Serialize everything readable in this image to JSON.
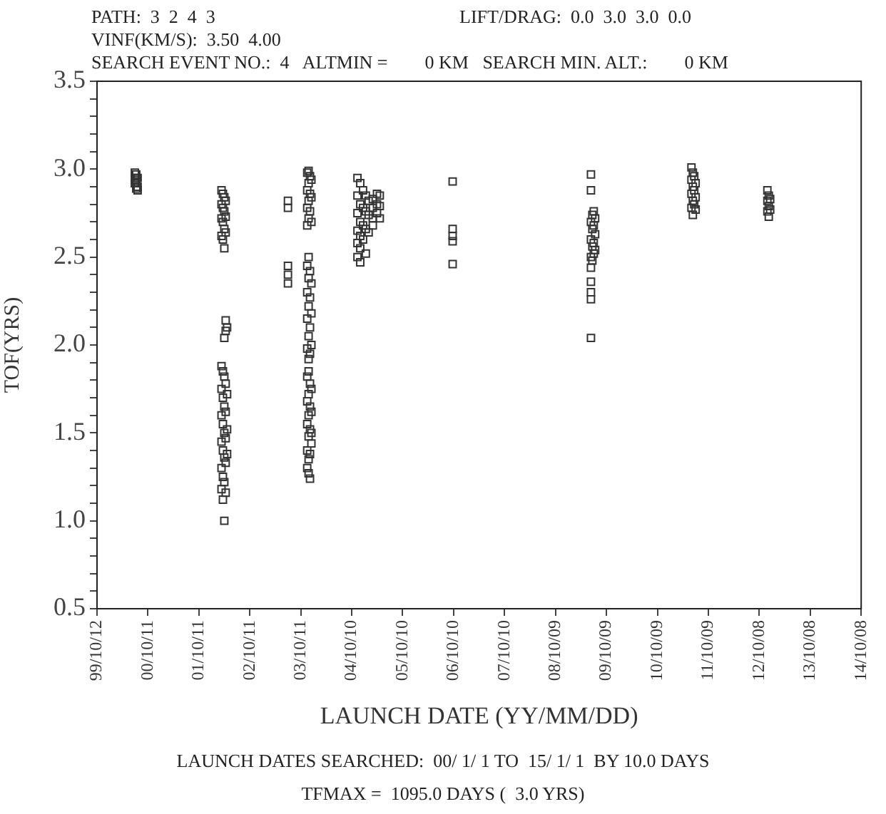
{
  "chart_data": {
    "type": "scatter",
    "xlabel": "LAUNCH DATE (YY/MM/DD)",
    "ylabel": "TOF(YRS)",
    "annotations": [
      "PATH:  3  2  4  3",
      "LIFT/DRAG:  0.0  3.0  3.0  0.0",
      "VINF(KM/S):  3.50  4.00",
      "SEARCH EVENT NO.:  4   ALTMIN =        0 KM   SEARCH MIN. ALT.:        0 KM",
      "LAUNCH DATES SEARCHED:  00/ 1/ 1 TO  15/ 1/ 1  BY 10.0 DAYS",
      "TFMAX =  1095.0 DAYS (  3.0 YRS)"
    ],
    "x": [
      "2000-07-09",
      "2000-07-09",
      "2000-07-09",
      "2000-07-19",
      "2000-07-19",
      "2000-07-19",
      "2000-07-29",
      "2000-07-29",
      "2000-07-29",
      "2002-03-22",
      "2002-03-22",
      "2002-03-22",
      "2002-03-22",
      "2002-03-22",
      "2002-03-22",
      "2002-03-22",
      "2002-03-22",
      "2002-03-22",
      "2002-03-22",
      "2002-04-01",
      "2002-04-01",
      "2002-04-01",
      "2002-04-01",
      "2002-04-01",
      "2002-04-01",
      "2002-04-01",
      "2002-04-01",
      "2002-04-01",
      "2002-04-01",
      "2002-04-11",
      "2002-04-11",
      "2002-04-11",
      "2002-04-11",
      "2002-04-11",
      "2002-04-11",
      "2002-04-11",
      "2002-04-11",
      "2002-04-11",
      "2002-04-11",
      "2002-04-11",
      "2002-04-21",
      "2002-04-21",
      "2002-04-21",
      "2002-04-21",
      "2002-04-21",
      "2002-04-21",
      "2002-04-21",
      "2002-04-21",
      "2002-04-21",
      "2002-04-21",
      "2002-05-01",
      "2002-05-01",
      "2002-05-01",
      "2002-05-01",
      "2003-07-11",
      "2003-07-11",
      "2003-07-11",
      "2003-07-11",
      "2003-07-11",
      "2003-11-26",
      "2003-11-26",
      "2003-11-26",
      "2003-11-26",
      "2003-11-26",
      "2003-11-26",
      "2003-11-26",
      "2003-11-26",
      "2003-11-26",
      "2003-11-26",
      "2003-11-26",
      "2003-11-26",
      "2003-11-26",
      "2003-12-06",
      "2003-12-06",
      "2003-12-06",
      "2003-12-06",
      "2003-12-06",
      "2003-12-06",
      "2003-12-06",
      "2003-12-06",
      "2003-12-06",
      "2003-12-06",
      "2003-12-06",
      "2003-12-06",
      "2003-12-06",
      "2003-12-06",
      "2003-12-06",
      "2003-12-16",
      "2003-12-16",
      "2003-12-16",
      "2003-12-16",
      "2003-12-16",
      "2003-12-16",
      "2003-12-16",
      "2003-12-16",
      "2003-12-16",
      "2003-12-16",
      "2003-12-16",
      "2003-12-16",
      "2003-12-26",
      "2003-12-26",
      "2003-12-26",
      "2003-12-26",
      "2003-12-26",
      "2003-12-26",
      "2003-12-26",
      "2003-12-26",
      "2003-12-26",
      "2003-12-26",
      "2004-11-20",
      "2004-11-20",
      "2004-11-20",
      "2004-11-20",
      "2004-11-20",
      "2004-11-20",
      "2004-12-10",
      "2004-12-10",
      "2004-12-10",
      "2004-12-10",
      "2004-12-10",
      "2004-12-10",
      "2004-12-30",
      "2004-12-30",
      "2004-12-30",
      "2004-12-30",
      "2005-01-19",
      "2005-01-19",
      "2005-01-19",
      "2005-01-19",
      "2005-02-08",
      "2005-02-08",
      "2005-02-08",
      "2005-03-10",
      "2005-03-10",
      "2005-03-10",
      "2005-03-10",
      "2005-04-09",
      "2005-04-09",
      "2005-04-09",
      "2005-04-29",
      "2005-04-29",
      "2005-04-29",
      "2006-10-03",
      "2006-10-03",
      "2006-10-03",
      "2006-10-03",
      "2006-10-03",
      "2009-06-20",
      "2009-06-20",
      "2009-06-20",
      "2009-06-20",
      "2009-06-20",
      "2009-06-20",
      "2009-06-20",
      "2009-06-20",
      "2009-06-20",
      "2009-06-20",
      "2009-06-30",
      "2009-06-30",
      "2009-06-30",
      "2009-06-30",
      "2009-07-10",
      "2009-07-10",
      "2009-07-10",
      "2009-07-10",
      "2009-07-20",
      "2009-07-20",
      "2009-07-20",
      "2011-06-10",
      "2011-06-10",
      "2011-06-10",
      "2011-06-10",
      "2011-06-20",
      "2011-06-20",
      "2011-06-20",
      "2011-06-20",
      "2011-06-30",
      "2011-06-30",
      "2011-06-30",
      "2011-07-10",
      "2011-07-10",
      "2011-07-10",
      "2012-12-05",
      "2012-12-05",
      "2012-12-05",
      "2012-12-15",
      "2012-12-15",
      "2012-12-15",
      "2012-12-25",
      "2012-12-25"
    ],
    "values": [
      2.98,
      2.95,
      2.92,
      2.97,
      2.93,
      2.89,
      2.95,
      2.9,
      2.88,
      2.88,
      2.8,
      2.72,
      2.62,
      1.88,
      1.75,
      1.6,
      1.45,
      1.3,
      1.18,
      2.86,
      2.78,
      2.7,
      2.6,
      1.85,
      1.7,
      1.55,
      1.4,
      1.25,
      1.12,
      2.84,
      2.76,
      2.66,
      2.55,
      2.04,
      1.82,
      1.65,
      1.5,
      1.36,
      1.22,
      1.0,
      2.82,
      2.73,
      2.64,
      2.14,
      2.08,
      1.78,
      1.62,
      1.47,
      1.33,
      1.16,
      2.1,
      1.72,
      1.52,
      1.38,
      2.82,
      2.78,
      2.45,
      2.4,
      2.35,
      2.98,
      2.88,
      2.78,
      2.68,
      2.45,
      2.3,
      2.15,
      1.98,
      1.82,
      1.68,
      1.55,
      1.4,
      1.3,
      2.99,
      2.92,
      2.82,
      2.72,
      2.5,
      2.38,
      2.22,
      2.05,
      1.92,
      1.85,
      1.72,
      1.6,
      1.48,
      1.35,
      1.27,
      2.96,
      2.86,
      2.76,
      2.42,
      2.27,
      2.1,
      1.95,
      1.78,
      1.65,
      1.52,
      1.38,
      1.24,
      2.94,
      2.84,
      2.7,
      2.35,
      2.18,
      2.0,
      1.75,
      1.62,
      1.5,
      1.44,
      2.95,
      2.85,
      2.75,
      2.65,
      2.58,
      2.5,
      2.92,
      2.8,
      2.7,
      2.62,
      2.55,
      2.47,
      2.88,
      2.78,
      2.68,
      2.6,
      2.85,
      2.76,
      2.66,
      2.52,
      2.82,
      2.74,
      2.64,
      2.83,
      2.78,
      2.72,
      2.68,
      2.86,
      2.8,
      2.75,
      2.85,
      2.79,
      2.72,
      2.93,
      2.66,
      2.62,
      2.59,
      2.46,
      2.97,
      2.88,
      2.7,
      2.6,
      2.5,
      2.44,
      2.36,
      2.3,
      2.26,
      2.04,
      2.74,
      2.66,
      2.56,
      2.48,
      2.76,
      2.68,
      2.58,
      2.52,
      2.72,
      2.63,
      2.54,
      3.01,
      2.94,
      2.86,
      2.78,
      2.98,
      2.9,
      2.82,
      2.74,
      2.96,
      2.88,
      2.8,
      2.92,
      2.84,
      2.77,
      2.88,
      2.82,
      2.76,
      2.85,
      2.79,
      2.73,
      2.83,
      2.77
    ],
    "color": "#333333",
    "marker": "square",
    "grid": false,
    "legend": false,
    "xlim": [
      "1999-10-12",
      "2014-10-08"
    ],
    "xticks": [
      {
        "value": "1999-10-12",
        "label": "99/10/12"
      },
      {
        "value": "2000-10-11",
        "label": "00/10/11"
      },
      {
        "value": "2001-10-11",
        "label": "01/10/11"
      },
      {
        "value": "2002-10-11",
        "label": "02/10/11"
      },
      {
        "value": "2003-10-11",
        "label": "03/10/11"
      },
      {
        "value": "2004-10-10",
        "label": "04/10/10"
      },
      {
        "value": "2005-10-10",
        "label": "05/10/10"
      },
      {
        "value": "2006-10-10",
        "label": "06/10/10"
      },
      {
        "value": "2007-10-10",
        "label": "07/10/10"
      },
      {
        "value": "2008-10-09",
        "label": "08/10/09"
      },
      {
        "value": "2009-10-09",
        "label": "09/10/09"
      },
      {
        "value": "2010-10-09",
        "label": "10/10/09"
      },
      {
        "value": "2011-10-09",
        "label": "11/10/09"
      },
      {
        "value": "2012-10-08",
        "label": "12/10/08"
      },
      {
        "value": "2013-10-08",
        "label": "13/10/08"
      },
      {
        "value": "2014-10-08",
        "label": "14/10/08"
      }
    ],
    "ylim": [
      0.5,
      3.5
    ],
    "yticks": [
      0.5,
      {
        "value": 0.6,
        "label": null
      },
      {
        "value": 0.7,
        "label": null
      },
      {
        "value": 0.8,
        "label": null
      },
      {
        "value": 0.9,
        "label": null
      },
      {
        "value": 1,
        "label": "1.0"
      },
      {
        "value": 1.1,
        "label": null
      },
      {
        "value": 1.2,
        "label": null
      },
      {
        "value": 1.3,
        "label": null
      },
      {
        "value": 1.4,
        "label": null
      },
      1.5,
      {
        "value": 1.6,
        "label": null
      },
      {
        "value": 1.7,
        "label": null
      },
      {
        "value": 1.8,
        "label": null
      },
      {
        "value": 1.9,
        "label": null
      },
      {
        "value": 2,
        "label": "2.0"
      },
      {
        "value": 2.1,
        "label": null
      },
      {
        "value": 2.2,
        "label": null
      },
      {
        "value": 2.3,
        "label": null
      },
      {
        "value": 2.4,
        "label": null
      },
      2.5,
      {
        "value": 2.6,
        "label": null
      },
      {
        "value": 2.7,
        "label": null
      },
      {
        "value": 2.8,
        "label": null
      },
      {
        "value": 2.9,
        "label": null
      },
      {
        "value": 3,
        "label": "3.0"
      },
      {
        "value": 3.1,
        "label": null
      },
      {
        "value": 3.2,
        "label": null
      },
      {
        "value": 3.3,
        "label": null
      },
      {
        "value": 3.4,
        "label": null
      },
      3.5
    ]
  }
}
